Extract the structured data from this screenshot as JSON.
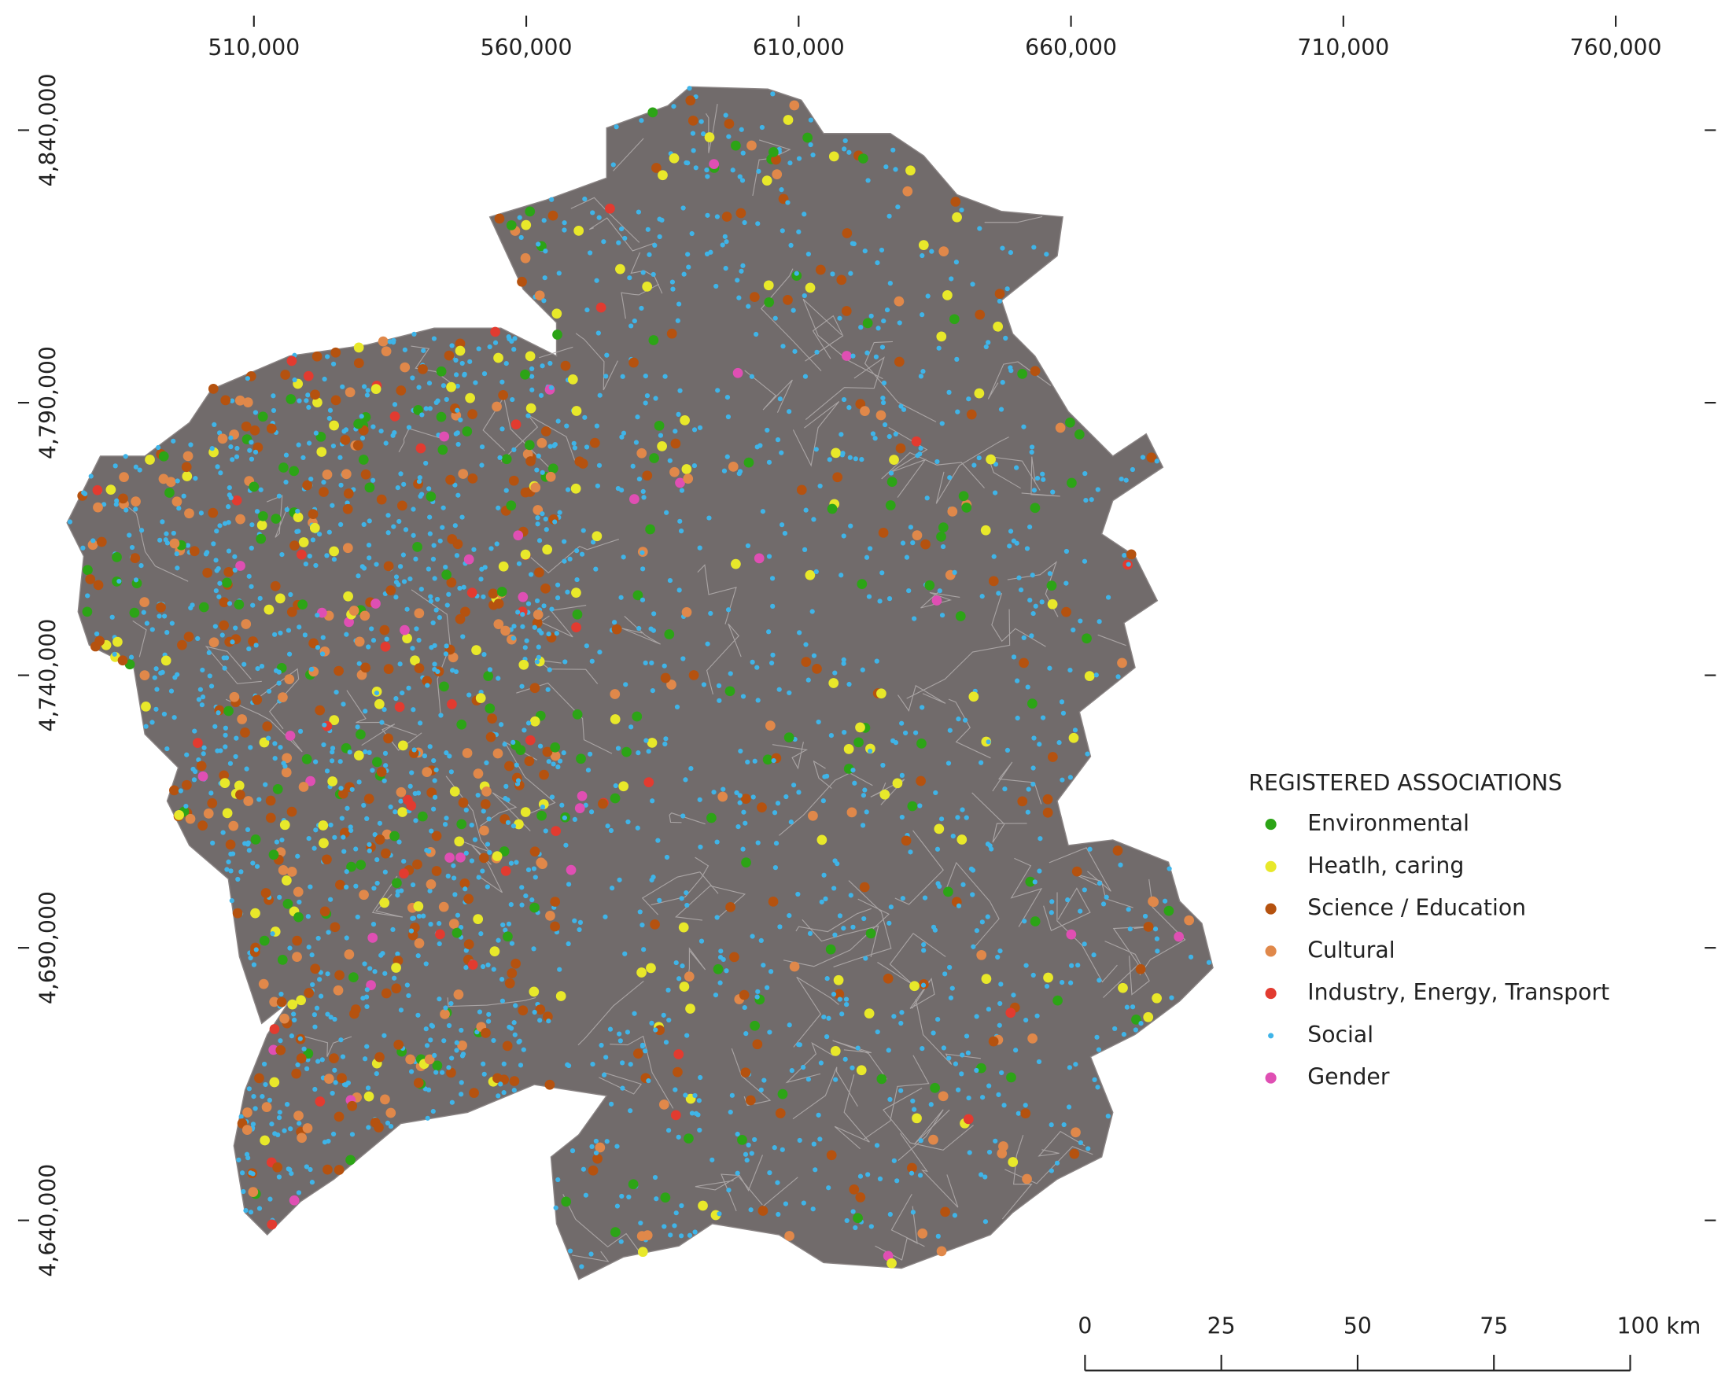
{
  "x_axis": {
    "ticks": [
      {
        "value": 510000,
        "label": "510,000"
      },
      {
        "value": 560000,
        "label": "560,000"
      },
      {
        "value": 610000,
        "label": "610,000"
      },
      {
        "value": 660000,
        "label": "660,000"
      },
      {
        "value": 710000,
        "label": "710,000"
      },
      {
        "value": 760000,
        "label": "760,000"
      }
    ]
  },
  "y_axis": {
    "ticks": [
      {
        "value": 4840000,
        "label": "4,840,000"
      },
      {
        "value": 4790000,
        "label": "4,790,000"
      },
      {
        "value": 4740000,
        "label": "4,740,000"
      },
      {
        "value": 4690000,
        "label": "4,690,000"
      },
      {
        "value": 4640000,
        "label": "4,640,000"
      }
    ]
  },
  "legend": {
    "title": "REGISTERED ASSOCIATIONS",
    "items": [
      {
        "label": "Environmental",
        "color": "#2ca416"
      },
      {
        "label": "Heatlh, caring",
        "color": "#e8e82a"
      },
      {
        "label": "Science / Education",
        "color": "#b5520f"
      },
      {
        "label": "Cultural",
        "color": "#e0884a"
      },
      {
        "label": "Industry, Energy, Transport",
        "color": "#e23b30"
      },
      {
        "label": "Social",
        "color": "#3fb4e8"
      },
      {
        "label": "Gender",
        "color": "#df4fb3"
      }
    ]
  },
  "scale_bar": {
    "ticks": [
      {
        "value": 0,
        "label": "0"
      },
      {
        "value": 25,
        "label": "25"
      },
      {
        "value": 50,
        "label": "50"
      },
      {
        "value": 75,
        "label": "75"
      },
      {
        "value": 100,
        "label": "100 km"
      }
    ]
  }
}
